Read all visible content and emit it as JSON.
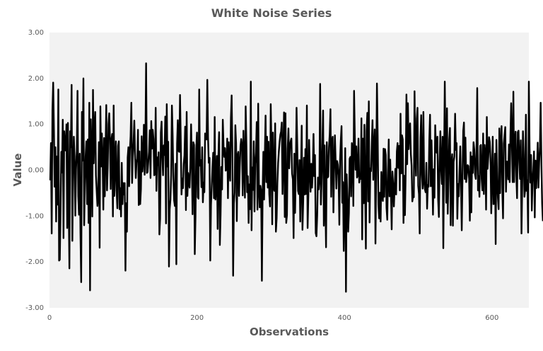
{
  "chart_data": {
    "type": "line",
    "title": "White Noise Series",
    "xlabel": "Observations",
    "ylabel": "Value",
    "xlim": [
      0,
      650
    ],
    "ylim": [
      -3.0,
      3.0
    ],
    "x_ticks": [
      0,
      200,
      400,
      600
    ],
    "x_tick_labels": [
      "0",
      "200",
      "400",
      "600"
    ],
    "y_ticks": [
      -3,
      -2,
      -1,
      0,
      1,
      2,
      3
    ],
    "y_tick_labels": [
      "-3.00",
      "-2.00",
      "-1.00",
      "0.00",
      "1.00",
      "2.00",
      "3.00"
    ],
    "grid": false,
    "legend": "none",
    "plot_background": "#f2f2f2",
    "line_color": "#000000",
    "series": [
      {
        "x_start": 1,
        "x_step": 1,
        "values": [
          -0.22,
          0.59,
          -1.38,
          1.3,
          1.91,
          0.87,
          -0.36,
          0.5,
          -1.12,
          0.3,
          -0.75,
          1.76,
          -1.97,
          -1.95,
          -0.87,
          0.4,
          -0.05,
          1.1,
          -1.48,
          0.85,
          0.47,
          0.43,
          1.0,
          -1.26,
          1.03,
          -0.69,
          -2.14,
          0.85,
          0.5,
          1.86,
          -1.54,
          -0.02,
          0.73,
          0.3,
          -0.99,
          0.02,
          0.42,
          1.73,
          -0.57,
          -0.97,
          0.36,
          -1.37,
          -2.44,
          1.27,
          0.21,
          2.0,
          -1.2,
          -0.32,
          0.3,
          0.63,
          -0.74,
          0.67,
          -1.15,
          1.47,
          -2.62,
          1.11,
          0.4,
          -1.01,
          1.75,
          0.15,
          0.9,
          1.27,
          -0.11,
          -0.45,
          -0.78,
          -0.55,
          0.61,
          -1.69,
          1.39,
          0.08,
          0.8,
          0.23,
          -0.86,
          0.7,
          -0.57,
          0.4,
          1.42,
          -0.44,
          0.05,
          1.01,
          1.24,
          0.66,
          -0.41,
          0.67,
          0.79,
          -1.01,
          1.41,
          -0.56,
          0.1,
          0.63,
          -0.44,
          -0.83,
          0.53,
          0.63,
          -0.85,
          -0.39,
          -1.01,
          0.16,
          -0.74,
          -0.28,
          -0.53,
          -0.28,
          -2.19,
          -0.72,
          -1.34,
          0.28,
          0.5,
          -0.35,
          0.43,
          0.74,
          1.47,
          -0.28,
          0.31,
          0.61,
          1.08,
          0.34,
          -0.17,
          0.17,
          0.25,
          0.88,
          -0.76,
          0.41,
          -0.74,
          -0.41,
          0.74,
          -0.03,
          0.2,
          0.99,
          -0.1,
          0.53,
          2.33,
          -0.06,
          -0.04,
          0.19,
          0.41,
          0.87,
          -0.17,
          1.07,
          0.47,
          0.88,
          0.68,
          -0.11,
          -0.09,
          1.36,
          -0.45,
          0.28,
          0.11,
          0.39,
          -1.4,
          -1.06,
          0.82,
          1.06,
          0.28,
          -0.11,
          0.54,
          0.33,
          1.17,
          -1.16,
          1.44,
          0.08,
          0.62,
          -2.1,
          -0.85,
          -0.64,
          -0.11,
          1.41,
          0.75,
          -0.19,
          -0.66,
          -0.78,
          0.14,
          -2.05,
          0.57,
          1.09,
          0.42,
          0.4,
          1.64,
          0.65,
          -0.53,
          -0.18,
          -0.39,
          0.14,
          0.32,
          0.95,
          -0.87,
          1.27,
          -0.56,
          -0.06,
          -0.27,
          -0.38,
          0.15,
          1.0,
          0.17,
          -0.96,
          0.61,
          0.55,
          -1.83,
          -0.99,
          0.47,
          0.82,
          -0.59,
          -0.62,
          1.76,
          0.1,
          0.22,
          -0.37,
          0.5,
          -0.7,
          -0.27,
          -0.48,
          0.8,
          0.69,
          0.67,
          1.97,
          0.71,
          0.16,
          0.27,
          -1.97,
          -0.76,
          -0.34,
          0.06,
          0.38,
          -0.61,
          1.16,
          -0.64,
          -0.34,
          0.31,
          -1.28,
          0.29,
          0.83,
          -1.63,
          -0.97,
          0.07,
          -0.42,
          1.1,
          0.52,
          0.29,
          0.48,
          -0.01,
          0.03,
          0.69,
          -0.61,
          0.61,
          -0.02,
          -0.23,
          1.14,
          1.63,
          0.37,
          -2.3,
          -0.73,
          -0.49,
          0.98,
          0.59,
          -1.11,
          0.32,
          0.4,
          -0.56,
          0.06,
          0.53,
          0.68,
          0.53,
          -0.55,
          0.86,
          0.1,
          -0.6,
          1.39,
          0.55,
          -0.48,
          -0.13,
          -1.15,
          -0.31,
          -0.85,
          1.93,
          -1.31,
          0.06,
          -0.43,
          0.63,
          -0.9,
          0.14,
          0.38,
          1.05,
          -0.86,
          1.45,
          -0.41,
          -0.81,
          -0.34,
          -0.45,
          -2.41,
          -0.5,
          0.4,
          -0.64,
          0.33,
          1.19,
          -0.26,
          0.73,
          -0.38,
          0.62,
          -0.52,
          -0.79,
          1.44,
          0.49,
          -1.18,
          0.82,
          -0.39,
          -0.45,
          1.02,
          -1.34,
          -1.05,
          -0.28,
          0.16,
          0.41,
          0.61,
          0.77,
          0.84,
          1.04,
          -0.52,
          0.32,
          1.26,
          -1.02,
          1.24,
          -1.15,
          -0.98,
          0.47,
          0.91,
          0.04,
          0.52,
          0.63,
          0.69,
          -0.08,
          -0.2,
          -1.48,
          0.36,
          -0.93,
          0.03,
          1.36,
          0.5,
          -0.45,
          -0.52,
          0.22,
          -1.12,
          -0.14,
          0.97,
          -1.3,
          -0.69,
          0.27,
          -0.53,
          0.46,
          -0.52,
          1.41,
          -1.26,
          -0.55,
          0.66,
          0.01,
          -0.47,
          0.14,
          -0.38,
          -0.02,
          0.79,
          -0.13,
          0.33,
          -1.37,
          -1.44,
          -0.98,
          -0.16,
          -0.42,
          -0.18,
          1.88,
          -0.75,
          -0.17,
          0.5,
          1.3,
          -1.21,
          0.54,
          -0.65,
          -1.68,
          0.61,
          -0.16,
          -0.14,
          0.51,
          0.79,
          1.33,
          -0.58,
          0.63,
          0.73,
          -0.92,
          0.12,
          0.76,
          0.2,
          -0.4,
          0.2,
          0.12,
          -0.11,
          -1.19,
          0.2,
          0.64,
          0.96,
          -0.71,
          -0.26,
          -1.76,
          -0.78,
          0.48,
          -2.65,
          -0.09,
          -0.69,
          -1.34,
          -0.93,
          0.25,
          0.29,
          -0.57,
          0.59,
          0.41,
          -0.78,
          1.73,
          0.74,
          0.01,
          0.52,
          -0.16,
          -0.11,
          0.69,
          -0.27,
          -0.12,
          -0.19,
          1.13,
          -1.51,
          0.69,
          -0.72,
          0.99,
          -0.46,
          -1.71,
          0.86,
          1.25,
          -0.68,
          1.5,
          -1.14,
          0.04,
          -0.02,
          0.57,
          1.09,
          -0.21,
          0.51,
          0.89,
          -1.6,
          -0.08,
          1.89,
          0.76,
          -0.74,
          -1.05,
          -0.49,
          -1.12,
          -0.04,
          -0.47,
          -0.67,
          0.47,
          -0.58,
          0.46,
          0.33,
          -0.82,
          -1.08,
          -0.05,
          0.67,
          -0.57,
          0.23,
          -0.45,
          -1.29,
          -0.03,
          -0.31,
          -0.79,
          -0.37,
          0.03,
          -0.53,
          0.41,
          0.59,
          0.05,
          0.53,
          -0.44,
          1.23,
          -0.07,
          0.76,
          0.67,
          -1.15,
          -0.12,
          -0.98,
          -0.01,
          1.65,
          0.13,
          1.46,
          0.46,
          0.85,
          1.02,
          0.35,
          0.1,
          -0.68,
          -0.56,
          -0.59,
          1.72,
          0.4,
          -0.12,
          1.12,
          1.36,
          -0.34,
          -0.52,
          -1.38,
          0.7,
          1.2,
          -0.1,
          -0.4,
          1.27,
          -0.25,
          -0.41,
          -0.48,
          0.16,
          -0.84,
          -0.32,
          -0.36,
          0.65,
          1.21,
          -0.35,
          0.65,
          -0.09,
          -0.97,
          0.02,
          -0.6,
          0.98,
          0.5,
          0.38,
          0.73,
          -0.64,
          -1.02,
          0.19,
          0.85,
          0.03,
          -0.3,
          0.73,
          -1.7,
          0.16,
          1.93,
          0.4,
          -0.71,
          1.35,
          -0.95,
          -0.21,
          0.67,
          0.92,
          -1.2,
          0.14,
          0.35,
          -1.21,
          0.18,
          0.3,
          1.23,
          0.44,
          0.59,
          -1.06,
          -0.3,
          -0.57,
          0.01,
          0.52,
          -0.31,
          -1.31,
          -0.18,
          0.86,
          1.04,
          -0.19,
          0.71,
          -0.26,
          -0.09,
          0.11,
          0.09,
          -0.21,
          -1.1,
          0.39,
          -0.92,
          0.3,
          -0.06,
          0.61,
          0.45,
          -0.09,
          -0.19,
          0.45,
          1.79,
          -0.44,
          -0.13,
          -0.58,
          0.53,
          0.55,
          -0.19,
          -0.44,
          0.8,
          -0.52,
          0.55,
          0.34,
          -0.86,
          1.16,
          0.03,
          0.29,
          0.72,
          0.62,
          0.26,
          -0.94,
          -0.17,
          0.73,
          -0.74,
          -0.73,
          0.36,
          -1.61,
          0.66,
          -0.21,
          -0.59,
          -0.85,
          0.91,
          -0.5,
          0.6,
          0.96,
          -0.42,
          -1.05,
          0.58,
          0.76,
          0.94,
          -0.47,
          0.19,
          0.18,
          -0.2,
          0.56,
          -0.26,
          0.74,
          1.46,
          0.59,
          -0.26,
          1.71,
          -0.26,
          0.58,
          0.84,
          -0.12,
          -0.61,
          0.83,
          0.86,
          0.18,
          -0.19,
          0.65,
          -1.38,
          -0.36,
          0.85,
          0.33,
          -0.58,
          -0.43,
          1.21,
          -0.45,
          -0.22,
          -1.36,
          1.93,
          0.48,
          -0.27,
          0.33,
          -0.88,
          -0.26,
          0.02,
          0.41,
          -1.03,
          0.21,
          -0.39,
          0.06,
          0.6,
          -0.38,
          0.18,
          0.51,
          1.47,
          0.18,
          -0.74,
          -1.11
        ]
      }
    ]
  }
}
